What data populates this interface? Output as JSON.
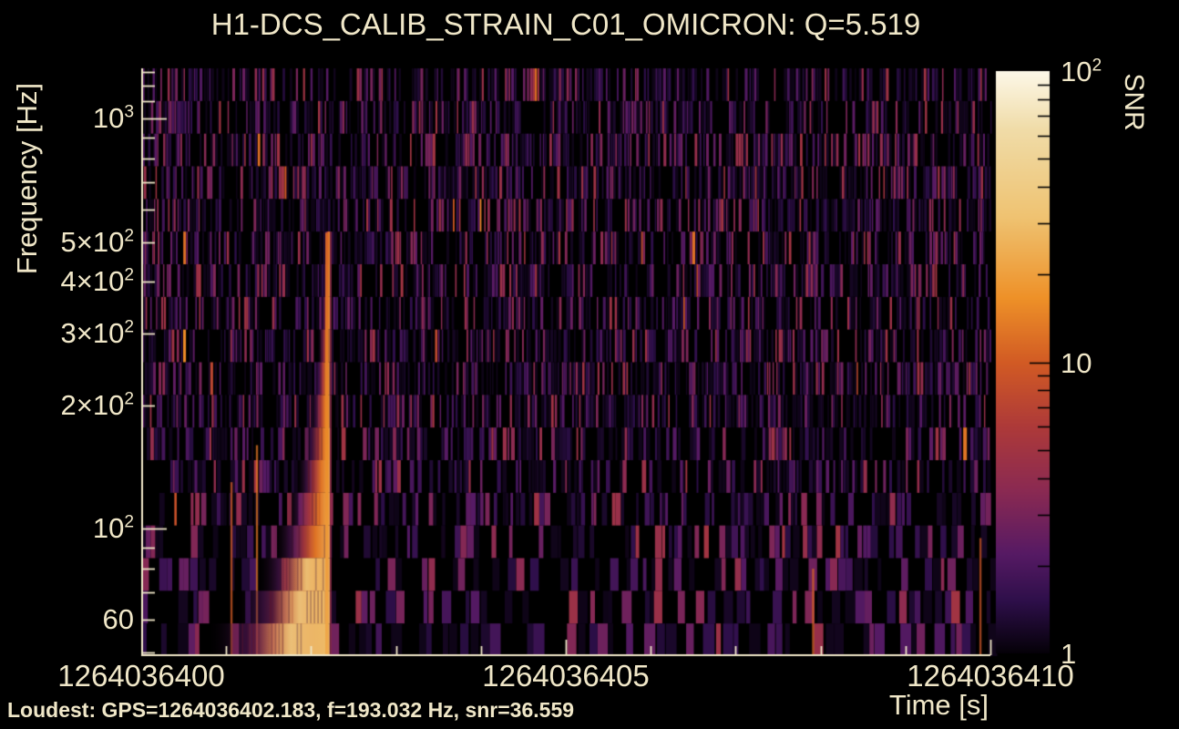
{
  "figure": {
    "background_color": "#000000",
    "foreground_color": "#f0e7c8",
    "title": "H1-DCS_CALIB_STRAIN_C01_OMICRON: Q=5.519",
    "footer": "Loudest: GPS=1264036402.183, f=193.032 Hz, snr=36.559"
  },
  "chart_data": {
    "type": "heatmap",
    "subtype": "omicron-q-transform-spectrogram",
    "title": "H1-DCS_CALIB_STRAIN_C01_OMICRON: Q=5.519",
    "channel": "H1-DCS_CALIB_STRAIN_C01_OMICRON",
    "q_value": 5.519,
    "xlabel": "Time [s]",
    "ylabel": "Frequency [Hz]",
    "colorbar_label": "SNR",
    "xlim": [
      1264036400,
      1264036410
    ],
    "ylim_hz": [
      49,
      1325
    ],
    "snr_lim": [
      1,
      100
    ],
    "log_y": true,
    "log_colorbar": true,
    "x_tick_labels": [
      {
        "t": 1264036400,
        "label": "1264036400"
      },
      {
        "t": 1264036405,
        "label": "1264036405"
      },
      {
        "t": 1264036410,
        "label": "1264036410"
      }
    ],
    "x_major_ticks_s": [
      1264036405,
      1264036410
    ],
    "x_minor_tick_step_s": 1,
    "y_tick_labels": [
      {
        "f": 1000,
        "prefix": "",
        "base": "10",
        "sup": "3"
      },
      {
        "f": 500,
        "prefix": "5×",
        "base": "10",
        "sup": "2"
      },
      {
        "f": 400,
        "prefix": "4×",
        "base": "10",
        "sup": "2"
      },
      {
        "f": 300,
        "prefix": "3×",
        "base": "10",
        "sup": "2"
      },
      {
        "f": 200,
        "prefix": "2×",
        "base": "10",
        "sup": "2"
      },
      {
        "f": 100,
        "prefix": "",
        "base": "10",
        "sup": "2"
      },
      {
        "f": 60,
        "prefix": "",
        "base": "60",
        "sup": ""
      }
    ],
    "y_major_ticks_hz": [
      100,
      1000
    ],
    "y_minor_ticks_hz": [
      50,
      60,
      70,
      80,
      90,
      200,
      300,
      400,
      500,
      600,
      700,
      800,
      900,
      1100,
      1200,
      1300
    ],
    "colorbar_tick_labels": [
      {
        "snr": 100,
        "base": "10",
        "sup": "2"
      },
      {
        "snr": 10,
        "base": "10",
        "sup": ""
      },
      {
        "snr": 1,
        "base": "1",
        "sup": ""
      }
    ],
    "colorbar_major_ticks": [
      10
    ],
    "colorbar_minor_ticks": [
      2,
      3,
      4,
      5,
      6,
      7,
      8,
      9,
      20,
      30,
      40,
      50,
      60,
      70,
      80,
      90
    ],
    "colormap": {
      "name": "inferno-like",
      "stops": [
        [
          0.0,
          "#050108"
        ],
        [
          0.09,
          "#2e0f4a"
        ],
        [
          0.17,
          "#561a64"
        ],
        [
          0.28,
          "#8b2a52"
        ],
        [
          0.39,
          "#ae3a39"
        ],
        [
          0.5,
          "#d25b24"
        ],
        [
          0.61,
          "#ee9128"
        ],
        [
          0.75,
          "#efc372"
        ],
        [
          0.9,
          "#f0dca8"
        ],
        [
          1.0,
          "#fdf8e8"
        ]
      ]
    },
    "loudest": {
      "gps": 1264036402.183,
      "frequency_hz": 193.032,
      "snr": 36.559
    },
    "event": {
      "center_time_gps": 1264036402.183,
      "narrow_line_top_hz": 527,
      "visible_frequency_range_hz": [
        49,
        527
      ],
      "shape": "narrow vertical ridge above ~200 Hz widening into a bright orange plume toward low frequency"
    },
    "noise": {
      "seed": 20200124,
      "rows": 18,
      "fill_probability": 0.58,
      "description": "dark purple vertical tile stripes on black; tile width grows toward low frequency",
      "hot_columns": [
        {
          "t_offset_s": 1.05,
          "f_top_hz": 130,
          "level": 0.5
        },
        {
          "t_offset_s": 1.35,
          "f_top_hz": 160,
          "level": 0.55
        },
        {
          "t_offset_s": 7.9,
          "f_top_hz": 80,
          "level": 0.52
        },
        {
          "t_offset_s": 9.87,
          "f_top_hz": 95,
          "level": 0.48
        }
      ]
    }
  }
}
